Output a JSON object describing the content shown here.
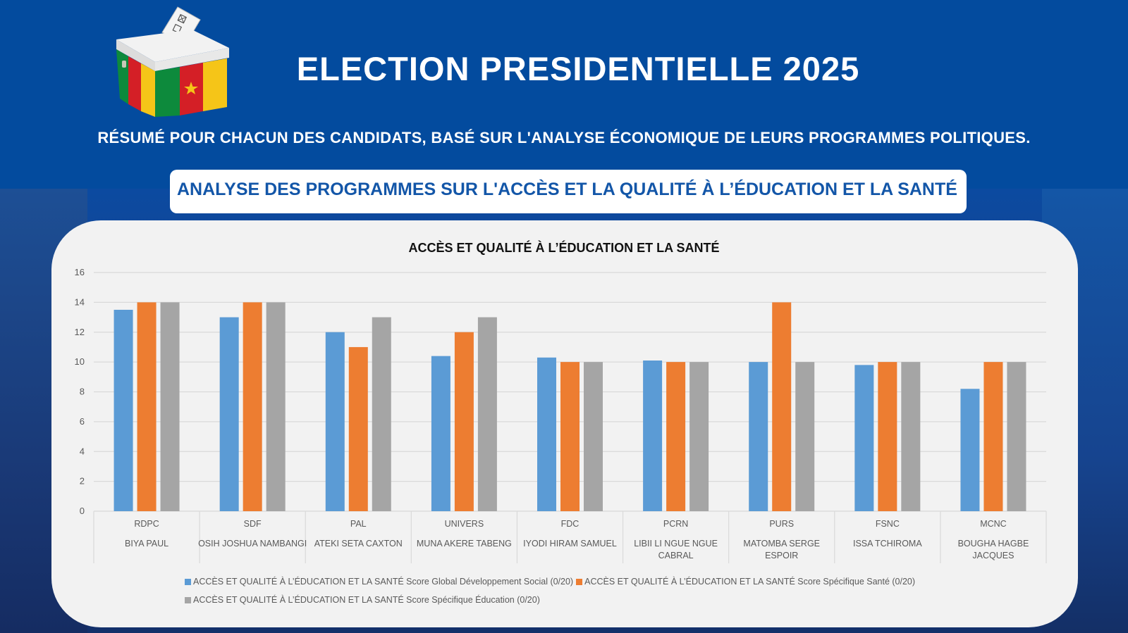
{
  "header": {
    "title": "ELECTION PRESIDENTIELLE 2025",
    "subtitle": "RÉSUMÉ POUR CHACUN DES CANDIDATS, BASÉ SUR L'ANALYSE ÉCONOMIQUE DE LEURS PROGRAMMES POLITIQUES.",
    "section_title": "ANALYSE DES PROGRAMMES SUR L'ACCÈS ET LA QUALITÉ À L’ÉDUCATION ET LA SANTÉ",
    "logo_icon": "ballot-box-cameroon-flag-icon"
  },
  "colors": {
    "background": "#034b9e",
    "section_title": "#1356a8",
    "series_blue": "#5b9bd5",
    "series_orange": "#ed7d31",
    "series_gray": "#a5a5a5"
  },
  "chart_data": {
    "type": "bar",
    "title": "ACCÈS ET QUALITÉ À L’ÉDUCATION ET LA SANTÉ",
    "xlabel": "",
    "ylabel": "",
    "ylim": [
      0,
      16
    ],
    "yticks": [
      "0",
      "2",
      "4",
      "6",
      "8",
      "10",
      "12",
      "14",
      "16"
    ],
    "grid": true,
    "legend_position": "bottom",
    "categories": [
      {
        "party": "RDPC",
        "candidate": [
          "BIYA PAUL"
        ]
      },
      {
        "party": "SDF",
        "candidate": [
          "OSIH JOSHUA NAMBANGI"
        ]
      },
      {
        "party": "PAL",
        "candidate": [
          "ATEKI SETA CAXTON"
        ]
      },
      {
        "party": "UNIVERS",
        "candidate": [
          "MUNA AKERE TABENG"
        ]
      },
      {
        "party": "FDC",
        "candidate": [
          "IYODI HIRAM SAMUEL"
        ]
      },
      {
        "party": "PCRN",
        "candidate": [
          "LIBII LI NGUE NGUE",
          "CABRAL"
        ]
      },
      {
        "party": "PURS",
        "candidate": [
          "MATOMBA SERGE",
          "ESPOIR"
        ]
      },
      {
        "party": "FSNC",
        "candidate": [
          "ISSA TCHIROMA"
        ]
      },
      {
        "party": "MCNC",
        "candidate": [
          "BOUGHA HAGBE",
          "JACQUES"
        ]
      }
    ],
    "series": [
      {
        "name": "ACCÈS ET QUALITÉ À L’ÉDUCATION ET LA SANTÉ Score Global Développement Social (0/20)",
        "color": "#5b9bd5",
        "values": [
          13.5,
          13.0,
          12.0,
          10.4,
          10.3,
          10.1,
          10.0,
          9.8,
          8.2
        ]
      },
      {
        "name": "ACCÈS ET QUALITÉ À L’ÉDUCATION ET LA SANTÉ Score Spécifique Santé (0/20)",
        "color": "#ed7d31",
        "values": [
          14,
          14,
          11,
          12,
          10,
          10,
          14,
          10,
          10
        ]
      },
      {
        "name": "ACCÈS ET QUALITÉ À L’ÉDUCATION ET LA SANTÉ Score Spécifique Éducation (0/20)",
        "color": "#a5a5a5",
        "values": [
          14,
          14,
          13,
          13,
          10,
          10,
          10,
          10,
          10
        ]
      }
    ]
  }
}
